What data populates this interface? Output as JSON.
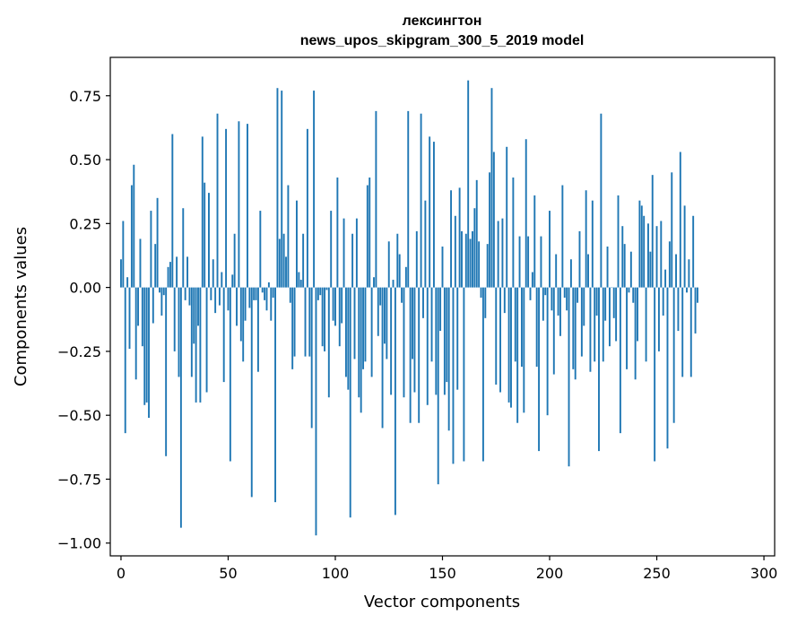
{
  "chart_data": {
    "type": "bar",
    "title": "лексингтон",
    "subtitle": "news_upos_skipgram_300_5_2019 model",
    "xlabel": "Vector components",
    "ylabel": "Components values",
    "xlim": [
      -5,
      305
    ],
    "ylim": [
      -1.05,
      0.9
    ],
    "xticks": [
      0,
      50,
      100,
      150,
      200,
      250,
      300
    ],
    "yticks": [
      -1.0,
      -0.75,
      -0.5,
      -0.25,
      0.0,
      0.25,
      0.5,
      0.75
    ],
    "ytick_labels": [
      "−1.00",
      "−0.75",
      "−0.50",
      "−0.25",
      "0.00",
      "0.25",
      "0.50",
      "0.75"
    ],
    "grid": false,
    "values": [
      0.11,
      0.26,
      -0.57,
      0.04,
      -0.24,
      0.4,
      0.48,
      -0.36,
      -0.15,
      0.19,
      -0.23,
      -0.46,
      -0.45,
      -0.51,
      0.3,
      -0.14,
      0.17,
      0.35,
      -0.02,
      -0.11,
      -0.03,
      -0.66,
      0.08,
      0.1,
      0.6,
      -0.25,
      0.12,
      -0.35,
      -0.94,
      0.31,
      -0.05,
      0.12,
      -0.07,
      -0.35,
      -0.22,
      -0.45,
      -0.15,
      -0.45,
      0.59,
      0.41,
      -0.41,
      0.37,
      -0.05,
      0.11,
      -0.1,
      0.68,
      -0.07,
      0.06,
      -0.37,
      0.62,
      -0.09,
      -0.68,
      0.05,
      0.21,
      -0.15,
      0.65,
      -0.21,
      -0.29,
      -0.13,
      0.64,
      -0.08,
      -0.82,
      -0.05,
      -0.05,
      -0.33,
      0.3,
      -0.02,
      -0.05,
      -0.09,
      0.02,
      -0.13,
      -0.04,
      -0.84,
      0.78,
      0.19,
      0.77,
      0.21,
      0.12,
      0.4,
      -0.06,
      -0.32,
      -0.27,
      0.34,
      0.06,
      0.03,
      0.21,
      -0.27,
      0.62,
      -0.27,
      -0.55,
      0.77,
      -0.97,
      -0.05,
      -0.03,
      -0.23,
      -0.25,
      -0.01,
      -0.43,
      0.3,
      -0.13,
      -0.15,
      0.43,
      -0.23,
      -0.14,
      0.27,
      -0.35,
      -0.4,
      -0.9,
      0.21,
      -0.28,
      0.27,
      -0.43,
      -0.49,
      -0.32,
      -0.29,
      0.4,
      0.43,
      -0.35,
      0.04,
      0.69,
      -0.19,
      -0.07,
      -0.55,
      -0.22,
      -0.28,
      0.18,
      -0.42,
      0.03,
      -0.89,
      0.21,
      0.13,
      -0.06,
      -0.43,
      0.08,
      0.69,
      -0.53,
      -0.28,
      -0.41,
      0.22,
      -0.53,
      0.68,
      -0.12,
      0.34,
      -0.46,
      0.59,
      -0.29,
      0.57,
      -0.42,
      -0.77,
      -0.17,
      0.16,
      -0.42,
      -0.37,
      -0.56,
      0.38,
      -0.69,
      0.28,
      -0.4,
      0.39,
      0.22,
      -0.68,
      0.21,
      0.81,
      0.19,
      0.22,
      0.31,
      0.42,
      0.18,
      -0.04,
      -0.68,
      -0.12,
      0.17,
      0.45,
      0.78,
      0.53,
      -0.38,
      0.26,
      -0.41,
      0.27,
      -0.1,
      0.55,
      -0.45,
      -0.47,
      0.43,
      -0.29,
      -0.53,
      0.2,
      -0.31,
      -0.49,
      0.58,
      0.2,
      -0.05,
      0.06,
      0.36,
      -0.31,
      -0.64,
      0.2,
      -0.13,
      -0.03,
      -0.5,
      0.3,
      -0.09,
      -0.34,
      0.13,
      -0.11,
      -0.19,
      0.4,
      -0.04,
      -0.09,
      -0.7,
      0.11,
      -0.32,
      -0.36,
      -0.06,
      0.22,
      -0.27,
      -0.15,
      0.38,
      0.13,
      -0.33,
      0.34,
      -0.29,
      -0.11,
      -0.64,
      0.68,
      -0.29,
      -0.13,
      0.16,
      -0.23,
      0.0,
      -0.12,
      -0.21,
      0.36,
      -0.57,
      0.24,
      0.17,
      -0.32,
      -0.02,
      0.14,
      -0.06,
      -0.36,
      -0.21,
      0.34,
      0.32,
      0.28,
      -0.29,
      0.25,
      0.14,
      0.44,
      -0.68,
      0.24,
      -0.25,
      0.26,
      -0.11,
      0.07,
      -0.63,
      0.18,
      0.45,
      -0.53,
      0.13,
      -0.17,
      0.53,
      -0.35,
      0.32,
      -0.02,
      0.11,
      -0.35,
      0.28,
      -0.18,
      -0.06
    ]
  }
}
